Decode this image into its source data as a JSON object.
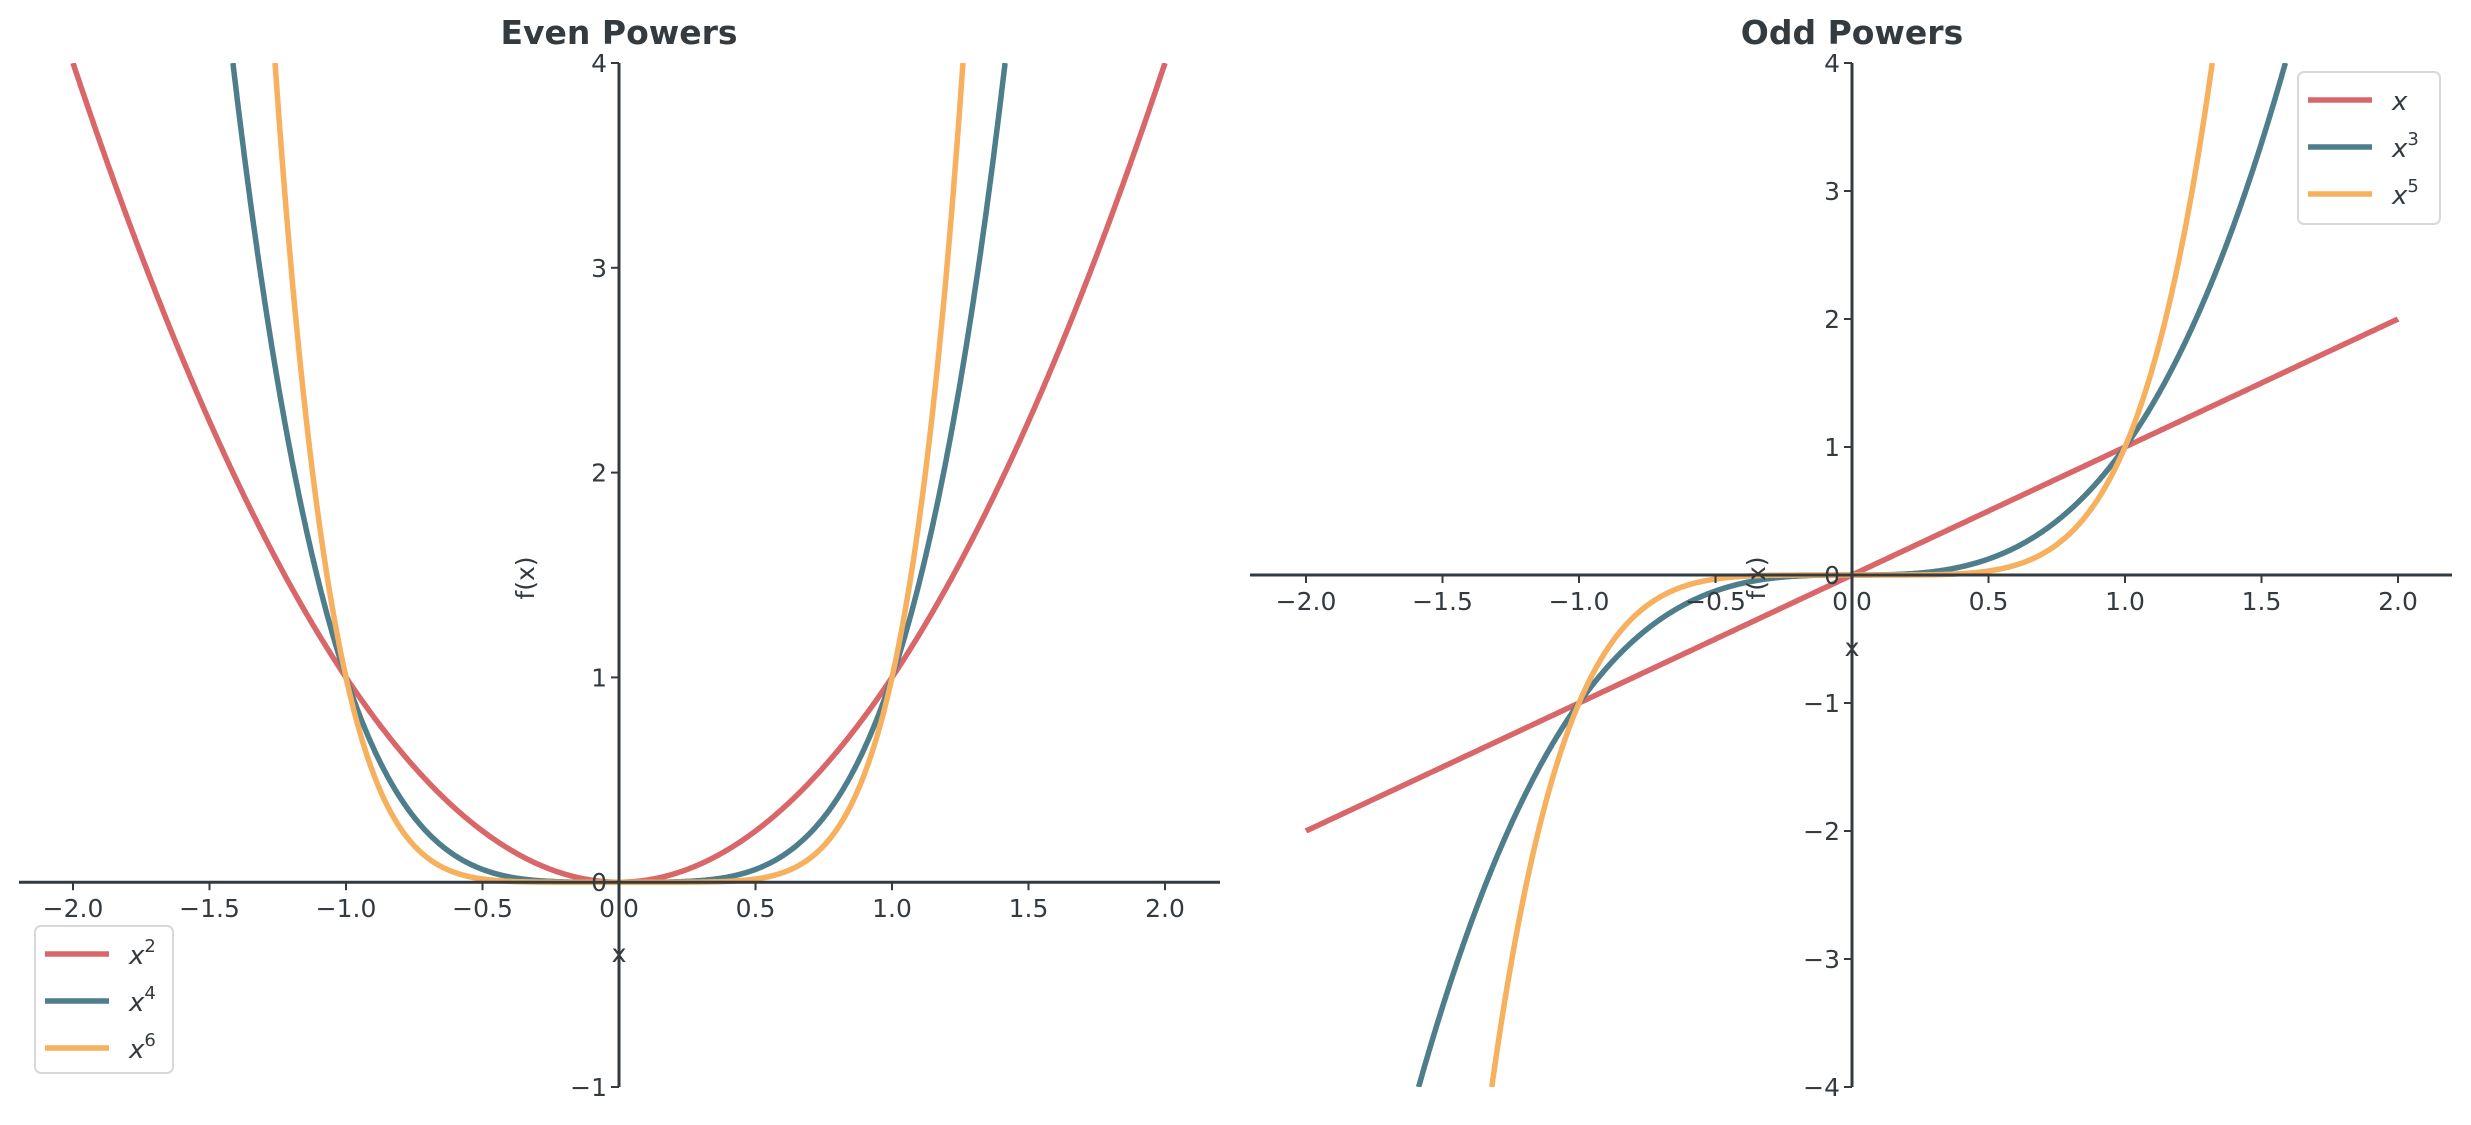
{
  "colors": {
    "red": "#d9676a",
    "teal": "#4e7d8c",
    "orange": "#f6b05e",
    "axis": "#333a40"
  },
  "chart_data": [
    {
      "type": "line",
      "title": "Even Powers",
      "xlabel": "x",
      "ylabel": "f(x)",
      "xlim": [
        -2.2,
        2.2
      ],
      "ylim": [
        -1,
        4
      ],
      "xticks": [
        -2.0,
        -1.5,
        -1.0,
        -0.5,
        0.0,
        0.5,
        1.0,
        1.5,
        2.0
      ],
      "xtick_labels": [
        "−2.0",
        "−1.5",
        "−1.0",
        "−0.5",
        "0.0",
        "0.5",
        "1.0",
        "1.5",
        "2.0"
      ],
      "yticks": [
        -1,
        0,
        1,
        2,
        3,
        4
      ],
      "ytick_labels": [
        "−1",
        "0",
        "1",
        "2",
        "3",
        "4"
      ],
      "x_domain": [
        -2,
        2
      ],
      "series": [
        {
          "name": "x2",
          "base": "x",
          "exp": "2",
          "power": 2,
          "color": "#d9676a"
        },
        {
          "name": "x4",
          "base": "x",
          "exp": "4",
          "power": 4,
          "color": "#4e7d8c"
        },
        {
          "name": "x6",
          "base": "x",
          "exp": "6",
          "power": 6,
          "color": "#f6b05e"
        }
      ],
      "legend": "bottom-left"
    },
    {
      "type": "line",
      "title": "Odd Powers",
      "xlabel": "x",
      "ylabel": "f(x)",
      "xlim": [
        -2.2,
        2.2
      ],
      "ylim": [
        -4,
        4
      ],
      "xticks": [
        -2.0,
        -1.5,
        -1.0,
        -0.5,
        0.0,
        0.5,
        1.0,
        1.5,
        2.0
      ],
      "xtick_labels": [
        "−2.0",
        "−1.5",
        "−1.0",
        "−0.5",
        "0.0",
        "0.5",
        "1.0",
        "1.5",
        "2.0"
      ],
      "yticks": [
        -4,
        -3,
        -2,
        -1,
        0,
        1,
        2,
        3,
        4
      ],
      "ytick_labels": [
        "−4",
        "−3",
        "−2",
        "−1",
        "0",
        "1",
        "2",
        "3",
        "4"
      ],
      "x_domain": [
        -2,
        2
      ],
      "series": [
        {
          "name": "x",
          "base": "x",
          "exp": "",
          "power": 1,
          "color": "#d9676a"
        },
        {
          "name": "x3",
          "base": "x",
          "exp": "3",
          "power": 3,
          "color": "#4e7d8c"
        },
        {
          "name": "x5",
          "base": "x",
          "exp": "5",
          "power": 5,
          "color": "#f6b05e"
        }
      ],
      "legend": "top-right"
    }
  ]
}
